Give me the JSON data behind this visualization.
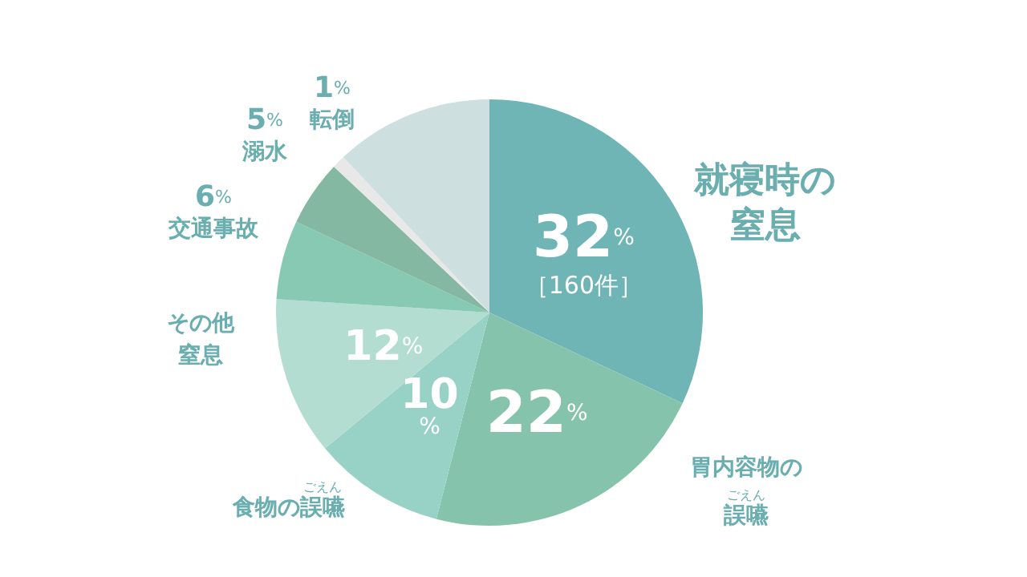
{
  "chart_data": {
    "type": "pie",
    "categories": [
      "就寝時の窒息",
      "胃内容物の誤嚥",
      "食物の誤嚥",
      "その他窒息",
      "交通事故",
      "溺水",
      "転倒",
      null
    ],
    "values": [
      32,
      22,
      10,
      12,
      6,
      5,
      1,
      12
    ],
    "colors": [
      "#6fb5b5",
      "#86c3ad",
      "#98d2c6",
      "#b2ddd0",
      "#87c9b3",
      "#84b8a3",
      "#e8e8e8",
      "#cde0df"
    ],
    "value_labels": [
      "32%\n［160件］",
      "22%",
      "10\n%",
      "12%",
      "6%",
      "5%",
      "1%",
      null
    ],
    "annotations": [
      "ごえん",
      "ごえん"
    ],
    "legend": false
  }
}
